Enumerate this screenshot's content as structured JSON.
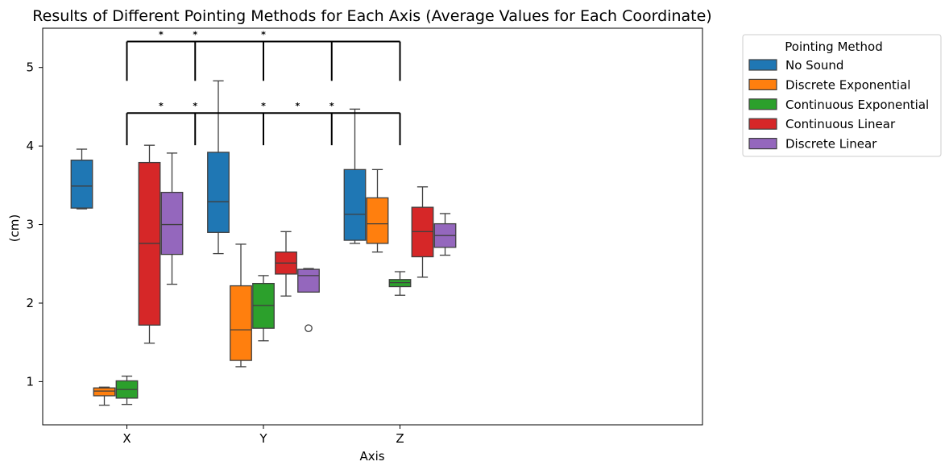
{
  "chart_data": {
    "type": "box",
    "title": "Results of Different Pointing Methods for Each Axis (Average Values for Each Coordinate)",
    "xlabel": "Axis",
    "ylabel": "(cm)",
    "categories": [
      "X",
      "Y",
      "Z"
    ],
    "ylim": [
      0.45,
      5.5
    ],
    "yticks": [
      1,
      2,
      3,
      4,
      5
    ],
    "grid": false,
    "legend": {
      "title": "Pointing Method",
      "placement": "outside-upper-right"
    },
    "series": [
      {
        "name": "No Sound",
        "color": "#1f77b4",
        "boxes": [
          {
            "category": "X",
            "whislo": 3.2,
            "q1": 3.21,
            "med": 3.49,
            "q3": 3.82,
            "whishi": 3.96,
            "fliers": []
          },
          {
            "category": "Y",
            "whislo": 2.63,
            "q1": 2.9,
            "med": 3.29,
            "q3": 3.92,
            "whishi": 4.83,
            "fliers": []
          },
          {
            "category": "Z",
            "whislo": 2.76,
            "q1": 2.8,
            "med": 3.13,
            "q3": 3.7,
            "whishi": 4.47,
            "fliers": []
          }
        ]
      },
      {
        "name": "Discrete Exponential",
        "color": "#ff7f0e",
        "boxes": [
          {
            "category": "X",
            "whislo": 0.7,
            "q1": 0.82,
            "med": 0.88,
            "q3": 0.92,
            "whishi": 0.93,
            "fliers": []
          },
          {
            "category": "Y",
            "whislo": 1.19,
            "q1": 1.27,
            "med": 1.66,
            "q3": 2.22,
            "whishi": 2.75,
            "fliers": []
          },
          {
            "category": "Z",
            "whislo": 2.65,
            "q1": 2.76,
            "med": 3.01,
            "q3": 3.34,
            "whishi": 3.7,
            "fliers": []
          }
        ]
      },
      {
        "name": "Continuous Exponential",
        "color": "#2ca02c",
        "boxes": [
          {
            "category": "X",
            "whislo": 0.71,
            "q1": 0.79,
            "med": 0.9,
            "q3": 1.01,
            "whishi": 1.07,
            "fliers": []
          },
          {
            "category": "Y",
            "whislo": 1.52,
            "q1": 1.68,
            "med": 1.97,
            "q3": 2.25,
            "whishi": 2.35,
            "fliers": []
          },
          {
            "category": "Z",
            "whislo": 2.1,
            "q1": 2.21,
            "med": 2.26,
            "q3": 2.3,
            "whishi": 2.4,
            "fliers": []
          }
        ]
      },
      {
        "name": "Continuous Linear",
        "color": "#d62728",
        "boxes": [
          {
            "category": "X",
            "whislo": 1.49,
            "q1": 1.72,
            "med": 2.76,
            "q3": 3.79,
            "whishi": 4.01,
            "fliers": []
          },
          {
            "category": "Y",
            "whislo": 2.09,
            "q1": 2.37,
            "med": 2.51,
            "q3": 2.65,
            "whishi": 2.91,
            "fliers": []
          },
          {
            "category": "Z",
            "whislo": 2.33,
            "q1": 2.59,
            "med": 2.91,
            "q3": 3.22,
            "whishi": 3.48,
            "fliers": []
          }
        ]
      },
      {
        "name": "Discrete Linear",
        "color": "#9467bd",
        "boxes": [
          {
            "category": "X",
            "whislo": 2.24,
            "q1": 2.62,
            "med": 3.0,
            "q3": 3.41,
            "whishi": 3.91,
            "fliers": []
          },
          {
            "category": "Y",
            "whislo": 2.14,
            "q1": 2.14,
            "med": 2.35,
            "q3": 2.43,
            "whishi": 2.44,
            "fliers": [
              1.68
            ]
          },
          {
            "category": "Z",
            "whislo": 2.61,
            "q1": 2.71,
            "med": 2.86,
            "q3": 3.01,
            "whishi": 3.14,
            "fliers": []
          }
        ]
      }
    ],
    "significance_brackets": [
      {
        "y": 5.33,
        "drop_to": 4.83,
        "tick_x": [
          0,
          0.5,
          1.0,
          1.5,
          2.0
        ],
        "labels": [
          {
            "x": 0.25,
            "text": "*"
          },
          {
            "x": 0.5,
            "text": "*"
          },
          {
            "x": 1.0,
            "text": "*"
          }
        ]
      },
      {
        "y": 4.42,
        "drop_to": 4.01,
        "tick_x": [
          0,
          0.5,
          1.0,
          1.5,
          2.0
        ],
        "labels": [
          {
            "x": 0.25,
            "text": "*"
          },
          {
            "x": 0.5,
            "text": "*"
          },
          {
            "x": 1.0,
            "text": "*"
          },
          {
            "x": 1.25,
            "text": "*"
          },
          {
            "x": 1.5,
            "text": "*"
          }
        ]
      }
    ]
  }
}
